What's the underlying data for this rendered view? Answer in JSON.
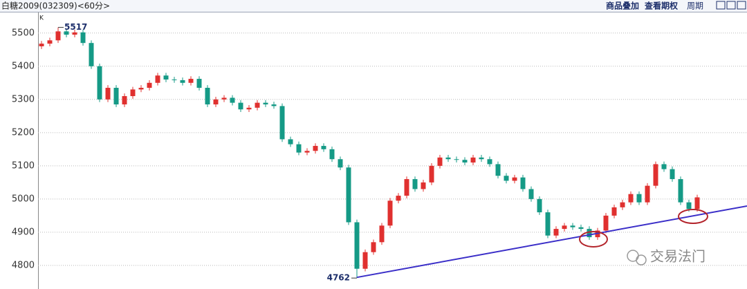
{
  "header": {
    "title": "白糖2009(032309)<60分>",
    "sub": "K",
    "buttons": [
      "商品叠加",
      "查看期权",
      "周期"
    ]
  },
  "watermark": "交易法门",
  "chart_data": {
    "type": "candlestick",
    "up_color": "#e0302f",
    "down_color": "#159a86",
    "grid": true,
    "ylim": [
      4729,
      5562
    ],
    "yticks": [
      4800,
      4900,
      5000,
      5100,
      5200,
      5300,
      5400,
      5500
    ],
    "open": [
      5460,
      5468,
      5478,
      5505,
      5495,
      5502,
      5470,
      5400,
      5300,
      5335,
      5285,
      5310,
      5330,
      5335,
      5350,
      5372,
      5360,
      5358,
      5350,
      5362,
      5335,
      5285,
      5300,
      5305,
      5290,
      5270,
      5275,
      5290,
      5285,
      5280,
      5180,
      5165,
      5140,
      5145,
      5160,
      5150,
      5120,
      5095,
      4930,
      4790,
      4840,
      4870,
      4920,
      4995,
      5010,
      5060,
      5030,
      5050,
      5100,
      5125,
      5120,
      5118,
      5110,
      5125,
      5120,
      5105,
      5070,
      5055,
      5065,
      5030,
      5000,
      4960,
      4890,
      4910,
      4920,
      4915,
      4910,
      4885,
      4905,
      4950,
      4975,
      4990,
      5015,
      4990,
      5040,
      5105,
      5090,
      5060,
      4990,
      4970
    ],
    "high": [
      5476,
      5486,
      5517,
      5513,
      5510,
      5510,
      5478,
      5408,
      5343,
      5343,
      5318,
      5338,
      5343,
      5358,
      5380,
      5380,
      5368,
      5366,
      5370,
      5370,
      5343,
      5308,
      5313,
      5313,
      5298,
      5283,
      5298,
      5298,
      5293,
      5288,
      5188,
      5173,
      5153,
      5168,
      5168,
      5158,
      5128,
      5103,
      4938,
      4848,
      4878,
      4928,
      5003,
      5018,
      5068,
      5068,
      5058,
      5108,
      5133,
      5133,
      5128,
      5126,
      5133,
      5133,
      5128,
      5113,
      5078,
      5073,
      5073,
      5038,
      5008,
      4968,
      4918,
      4928,
      4928,
      4923,
      4918,
      4913,
      4958,
      4983,
      4998,
      5023,
      5023,
      5048,
      5113,
      5113,
      5098,
      5068,
      4998,
      5013
    ],
    "low": [
      5452,
      5460,
      5470,
      5487,
      5487,
      5462,
      5392,
      5292,
      5292,
      5277,
      5277,
      5302,
      5322,
      5327,
      5342,
      5352,
      5350,
      5342,
      5342,
      5327,
      5277,
      5277,
      5292,
      5282,
      5262,
      5262,
      5267,
      5277,
      5272,
      5172,
      5157,
      5132,
      5132,
      5137,
      5142,
      5112,
      5087,
      4922,
      4762,
      4782,
      4832,
      4862,
      4912,
      4987,
      5002,
      5022,
      5022,
      5042,
      5092,
      5112,
      5110,
      5102,
      5102,
      5112,
      5097,
      5062,
      5047,
      5047,
      5022,
      4992,
      4952,
      4882,
      4882,
      4902,
      4907,
      4902,
      4877,
      4877,
      4897,
      4942,
      4967,
      4982,
      4982,
      4982,
      5032,
      5082,
      5052,
      4982,
      4962,
      4962
    ],
    "close": [
      5468,
      5478,
      5505,
      5495,
      5502,
      5470,
      5400,
      5300,
      5335,
      5285,
      5310,
      5330,
      5335,
      5350,
      5372,
      5360,
      5358,
      5350,
      5362,
      5335,
      5285,
      5300,
      5305,
      5290,
      5270,
      5275,
      5290,
      5285,
      5280,
      5180,
      5165,
      5140,
      5145,
      5160,
      5150,
      5120,
      5095,
      4930,
      4790,
      4840,
      4870,
      4920,
      4995,
      5010,
      5060,
      5030,
      5050,
      5100,
      5125,
      5120,
      5118,
      5110,
      5125,
      5120,
      5105,
      5070,
      5055,
      5065,
      5030,
      5000,
      4960,
      4890,
      4910,
      4920,
      4915,
      4910,
      4885,
      4905,
      4950,
      4975,
      4990,
      5015,
      4990,
      5040,
      5105,
      5090,
      5060,
      4990,
      4970,
      5005
    ],
    "max_label": "5517",
    "min_label": "4762",
    "trendline": {
      "x": [
        38,
        85
      ],
      "y": [
        4764,
        4979
      ],
      "color": "#3a2ec8"
    }
  }
}
